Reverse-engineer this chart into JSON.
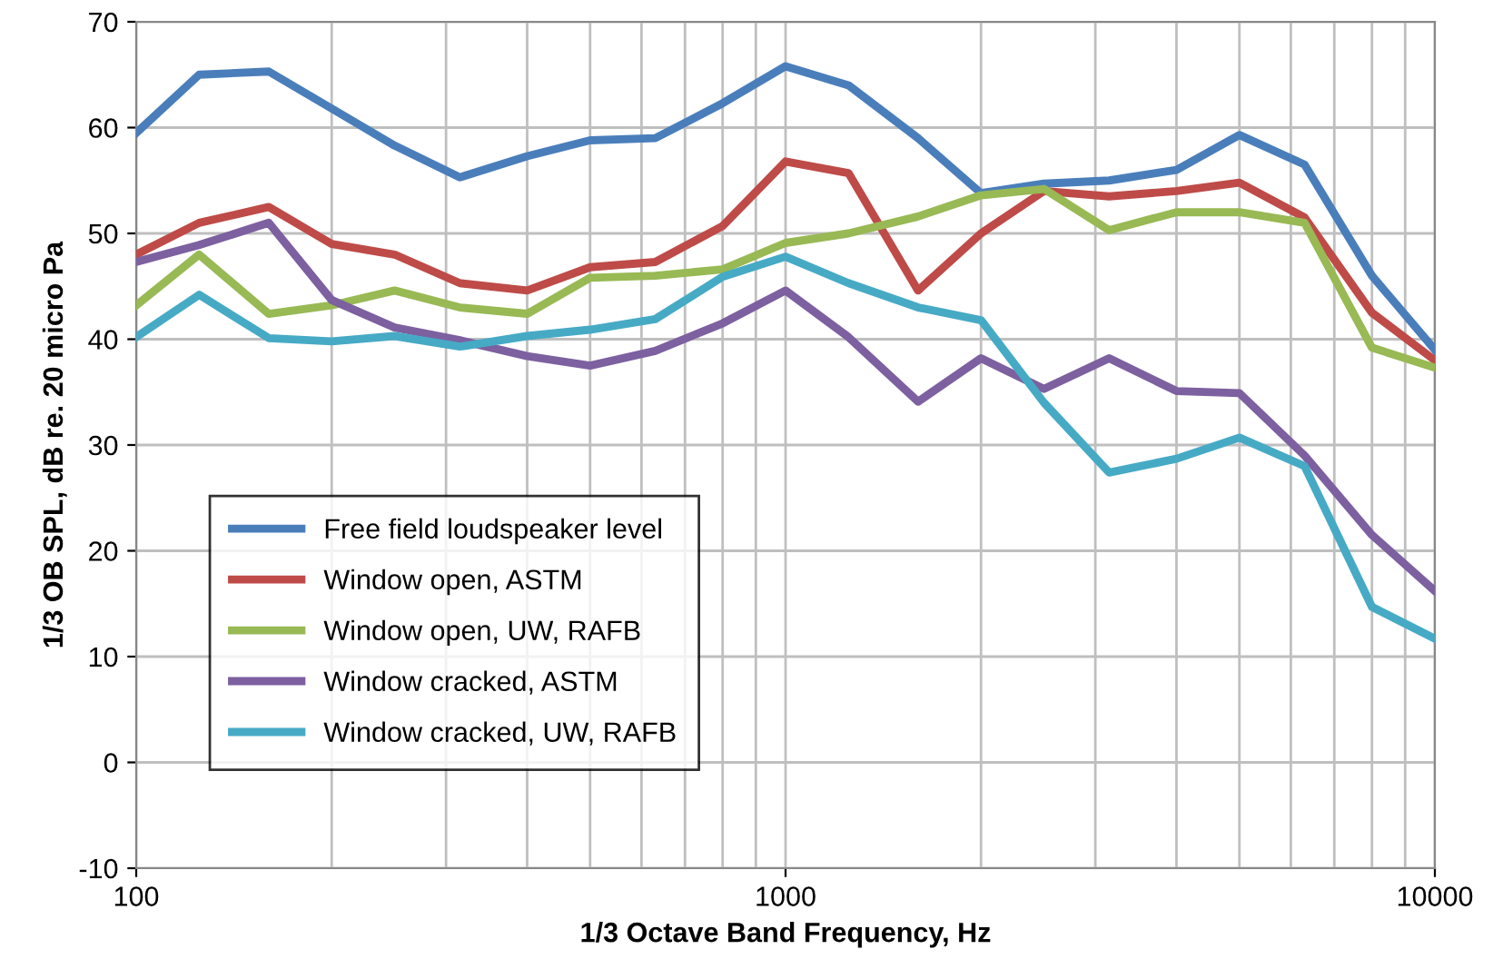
{
  "chart_data": {
    "type": "line",
    "xlabel": "1/3 Octave Band Frequency, Hz",
    "ylabel": "1/3 OB SPL, dB re. 20 micro Pa",
    "x": [
      100,
      125,
      160,
      200,
      250,
      315,
      400,
      500,
      630,
      800,
      1000,
      1250,
      1600,
      2000,
      2500,
      3150,
      4000,
      5000,
      6300,
      8000,
      10000
    ],
    "series": [
      {
        "name": "Free field loudspeaker level",
        "color": "#4a7ebb",
        "values": [
          59.5,
          65,
          65.3,
          61.8,
          58.3,
          55.3,
          57.3,
          58.8,
          59,
          62.3,
          65.8,
          64,
          59,
          53.8,
          54.7,
          55,
          56,
          59.3,
          56.5,
          46,
          39
        ]
      },
      {
        "name": "Window open, ASTM",
        "color": "#be4b48",
        "values": [
          48,
          51,
          52.5,
          49,
          48,
          45.3,
          44.6,
          46.8,
          47.3,
          50.7,
          56.8,
          55.7,
          44.6,
          50,
          54,
          53.5,
          54,
          54.8,
          51.5,
          42.5,
          38
        ]
      },
      {
        "name": "Window open, UW, RAFB",
        "color": "#98b954",
        "values": [
          43.2,
          48,
          42.4,
          43.2,
          44.6,
          43,
          42.4,
          45.8,
          46,
          46.6,
          49.1,
          50,
          51.6,
          53.6,
          54.2,
          50.3,
          52,
          52,
          51,
          39.2,
          37.3
        ]
      },
      {
        "name": "Window cracked, ASTM",
        "color": "#7d60a0",
        "values": [
          47.3,
          48.9,
          51,
          43.7,
          41.1,
          39.9,
          38.4,
          37.5,
          38.9,
          41.5,
          44.6,
          40.2,
          34.1,
          38.2,
          35.3,
          38.2,
          35.1,
          34.9,
          29,
          21.5,
          16.2
        ]
      },
      {
        "name": "Window cracked, UW, RAFB",
        "color": "#46aac5",
        "values": [
          40.2,
          44.2,
          40.1,
          39.8,
          40.3,
          39.3,
          40.3,
          40.9,
          41.9,
          45.9,
          47.8,
          45.3,
          43,
          41.8,
          34,
          27.4,
          28.7,
          30.7,
          28,
          14.7,
          11.7
        ]
      }
    ],
    "log": "x",
    "xlim": [
      100,
      10000
    ],
    "xticks": [
      100,
      1000,
      10000
    ],
    "ylim": [
      -10,
      70
    ],
    "yticks": [
      -10,
      0,
      10,
      20,
      30,
      40,
      50,
      60,
      70
    ],
    "grid": true,
    "legend": "bottom left",
    "marker": "none",
    "line_style": "solid"
  }
}
